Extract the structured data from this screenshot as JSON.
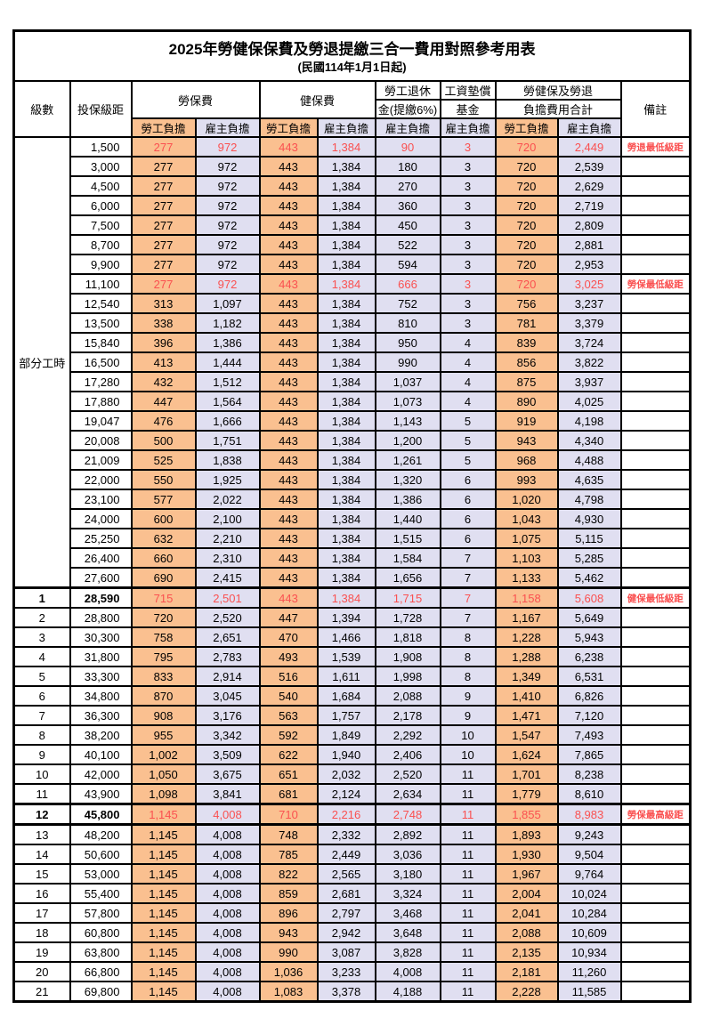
{
  "title": "2025年勞健保保費及勞退提繳三合一費用對照參考用表",
  "subtitle": "(民國114年1月1日起)",
  "colors": {
    "employee_bg": "#FAC090",
    "employer_bg": "#E0DFF1",
    "highlight_text": "#FA5050",
    "border": "#000000"
  },
  "header": {
    "level": "級數",
    "bracket": "投保級距",
    "labor_insurance": "勞保費",
    "health_insurance": "健保費",
    "pension_line1": "勞工退休",
    "pension_line2": "金(提繳6%)",
    "wage_fund_line1": "工資墊償",
    "wage_fund_line2": "基金",
    "total_line1": "勞健保及勞退",
    "total_line2": "負擔費用合計",
    "remark": "備註",
    "employee": "勞工負擔",
    "employer": "雇主負擔"
  },
  "sections": {
    "part_time_label": "部分工時"
  },
  "rows": [
    {
      "lv": "",
      "amt": "1,500",
      "v": [
        "277",
        "972",
        "443",
        "1,384",
        "90",
        "3",
        "720",
        "2,449"
      ],
      "note": "勞退最低級距",
      "hl": 1
    },
    {
      "lv": "",
      "amt": "3,000",
      "v": [
        "277",
        "972",
        "443",
        "1,384",
        "180",
        "3",
        "720",
        "2,539"
      ]
    },
    {
      "lv": "",
      "amt": "4,500",
      "v": [
        "277",
        "972",
        "443",
        "1,384",
        "270",
        "3",
        "720",
        "2,629"
      ]
    },
    {
      "lv": "",
      "amt": "6,000",
      "v": [
        "277",
        "972",
        "443",
        "1,384",
        "360",
        "3",
        "720",
        "2,719"
      ]
    },
    {
      "lv": "",
      "amt": "7,500",
      "v": [
        "277",
        "972",
        "443",
        "1,384",
        "450",
        "3",
        "720",
        "2,809"
      ]
    },
    {
      "lv": "",
      "amt": "8,700",
      "v": [
        "277",
        "972",
        "443",
        "1,384",
        "522",
        "3",
        "720",
        "2,881"
      ]
    },
    {
      "lv": "",
      "amt": "9,900",
      "v": [
        "277",
        "972",
        "443",
        "1,384",
        "594",
        "3",
        "720",
        "2,953"
      ]
    },
    {
      "lv": "",
      "amt": "11,100",
      "v": [
        "277",
        "972",
        "443",
        "1,384",
        "666",
        "3",
        "720",
        "3,025"
      ],
      "note": "勞保最低級距",
      "hl": 1
    },
    {
      "lv": "",
      "amt": "12,540",
      "v": [
        "313",
        "1,097",
        "443",
        "1,384",
        "752",
        "3",
        "756",
        "3,237"
      ]
    },
    {
      "lv": "",
      "amt": "13,500",
      "v": [
        "338",
        "1,182",
        "443",
        "1,384",
        "810",
        "3",
        "781",
        "3,379"
      ]
    },
    {
      "lv": "",
      "amt": "15,840",
      "v": [
        "396",
        "1,386",
        "443",
        "1,384",
        "950",
        "4",
        "839",
        "3,724"
      ]
    },
    {
      "lv": "",
      "amt": "16,500",
      "v": [
        "413",
        "1,444",
        "443",
        "1,384",
        "990",
        "4",
        "856",
        "3,822"
      ]
    },
    {
      "lv": "",
      "amt": "17,280",
      "v": [
        "432",
        "1,512",
        "443",
        "1,384",
        "1,037",
        "4",
        "875",
        "3,937"
      ]
    },
    {
      "lv": "",
      "amt": "17,880",
      "v": [
        "447",
        "1,564",
        "443",
        "1,384",
        "1,073",
        "4",
        "890",
        "4,025"
      ]
    },
    {
      "lv": "",
      "amt": "19,047",
      "v": [
        "476",
        "1,666",
        "443",
        "1,384",
        "1,143",
        "5",
        "919",
        "4,198"
      ]
    },
    {
      "lv": "",
      "amt": "20,008",
      "v": [
        "500",
        "1,751",
        "443",
        "1,384",
        "1,200",
        "5",
        "943",
        "4,340"
      ]
    },
    {
      "lv": "",
      "amt": "21,009",
      "v": [
        "525",
        "1,838",
        "443",
        "1,384",
        "1,261",
        "5",
        "968",
        "4,488"
      ]
    },
    {
      "lv": "",
      "amt": "22,000",
      "v": [
        "550",
        "1,925",
        "443",
        "1,384",
        "1,320",
        "6",
        "993",
        "4,635"
      ]
    },
    {
      "lv": "",
      "amt": "23,100",
      "v": [
        "577",
        "2,022",
        "443",
        "1,384",
        "1,386",
        "6",
        "1,020",
        "4,798"
      ]
    },
    {
      "lv": "",
      "amt": "24,000",
      "v": [
        "600",
        "2,100",
        "443",
        "1,384",
        "1,440",
        "6",
        "1,043",
        "4,930"
      ]
    },
    {
      "lv": "",
      "amt": "25,250",
      "v": [
        "632",
        "2,210",
        "443",
        "1,384",
        "1,515",
        "6",
        "1,075",
        "5,115"
      ]
    },
    {
      "lv": "",
      "amt": "26,400",
      "v": [
        "660",
        "2,310",
        "443",
        "1,384",
        "1,584",
        "7",
        "1,103",
        "5,285"
      ]
    },
    {
      "lv": "",
      "amt": "27,600",
      "v": [
        "690",
        "2,415",
        "443",
        "1,384",
        "1,656",
        "7",
        "1,133",
        "5,462"
      ]
    },
    {
      "lv": "1",
      "amt": "28,590",
      "v": [
        "715",
        "2,501",
        "443",
        "1,384",
        "1,715",
        "7",
        "1,158",
        "5,608"
      ],
      "note": "健保最低級距",
      "hl": 1,
      "bold": 1
    },
    {
      "lv": "2",
      "amt": "28,800",
      "v": [
        "720",
        "2,520",
        "447",
        "1,394",
        "1,728",
        "7",
        "1,167",
        "5,649"
      ]
    },
    {
      "lv": "3",
      "amt": "30,300",
      "v": [
        "758",
        "2,651",
        "470",
        "1,466",
        "1,818",
        "8",
        "1,228",
        "5,943"
      ]
    },
    {
      "lv": "4",
      "amt": "31,800",
      "v": [
        "795",
        "2,783",
        "493",
        "1,539",
        "1,908",
        "8",
        "1,288",
        "6,238"
      ]
    },
    {
      "lv": "5",
      "amt": "33,300",
      "v": [
        "833",
        "2,914",
        "516",
        "1,611",
        "1,998",
        "8",
        "1,349",
        "6,531"
      ]
    },
    {
      "lv": "6",
      "amt": "34,800",
      "v": [
        "870",
        "3,045",
        "540",
        "1,684",
        "2,088",
        "9",
        "1,410",
        "6,826"
      ]
    },
    {
      "lv": "7",
      "amt": "36,300",
      "v": [
        "908",
        "3,176",
        "563",
        "1,757",
        "2,178",
        "9",
        "1,471",
        "7,120"
      ]
    },
    {
      "lv": "8",
      "amt": "38,200",
      "v": [
        "955",
        "3,342",
        "592",
        "1,849",
        "2,292",
        "10",
        "1,547",
        "7,493"
      ]
    },
    {
      "lv": "9",
      "amt": "40,100",
      "v": [
        "1,002",
        "3,509",
        "622",
        "1,940",
        "2,406",
        "10",
        "1,624",
        "7,865"
      ]
    },
    {
      "lv": "10",
      "amt": "42,000",
      "v": [
        "1,050",
        "3,675",
        "651",
        "2,032",
        "2,520",
        "11",
        "1,701",
        "8,238"
      ]
    },
    {
      "lv": "11",
      "amt": "43,900",
      "v": [
        "1,098",
        "3,841",
        "681",
        "2,124",
        "2,634",
        "11",
        "1,779",
        "8,610"
      ]
    },
    {
      "lv": "12",
      "amt": "45,800",
      "v": [
        "1,145",
        "4,008",
        "710",
        "2,216",
        "2,748",
        "11",
        "1,855",
        "8,983"
      ],
      "note": "勞保最高級距",
      "hl": 1,
      "bold": 1
    },
    {
      "lv": "13",
      "amt": "48,200",
      "v": [
        "1,145",
        "4,008",
        "748",
        "2,332",
        "2,892",
        "11",
        "1,893",
        "9,243"
      ]
    },
    {
      "lv": "14",
      "amt": "50,600",
      "v": [
        "1,145",
        "4,008",
        "785",
        "2,449",
        "3,036",
        "11",
        "1,930",
        "9,504"
      ]
    },
    {
      "lv": "15",
      "amt": "53,000",
      "v": [
        "1,145",
        "4,008",
        "822",
        "2,565",
        "3,180",
        "11",
        "1,967",
        "9,764"
      ]
    },
    {
      "lv": "16",
      "amt": "55,400",
      "v": [
        "1,145",
        "4,008",
        "859",
        "2,681",
        "3,324",
        "11",
        "2,004",
        "10,024"
      ]
    },
    {
      "lv": "17",
      "amt": "57,800",
      "v": [
        "1,145",
        "4,008",
        "896",
        "2,797",
        "3,468",
        "11",
        "2,041",
        "10,284"
      ]
    },
    {
      "lv": "18",
      "amt": "60,800",
      "v": [
        "1,145",
        "4,008",
        "943",
        "2,942",
        "3,648",
        "11",
        "2,088",
        "10,609"
      ]
    },
    {
      "lv": "19",
      "amt": "63,800",
      "v": [
        "1,145",
        "4,008",
        "990",
        "3,087",
        "3,828",
        "11",
        "2,135",
        "10,934"
      ]
    },
    {
      "lv": "20",
      "amt": "66,800",
      "v": [
        "1,145",
        "4,008",
        "1,036",
        "3,233",
        "4,008",
        "11",
        "2,181",
        "11,260"
      ]
    },
    {
      "lv": "21",
      "amt": "69,800",
      "v": [
        "1,145",
        "4,008",
        "1,083",
        "3,378",
        "4,188",
        "11",
        "2,228",
        "11,585"
      ]
    }
  ]
}
